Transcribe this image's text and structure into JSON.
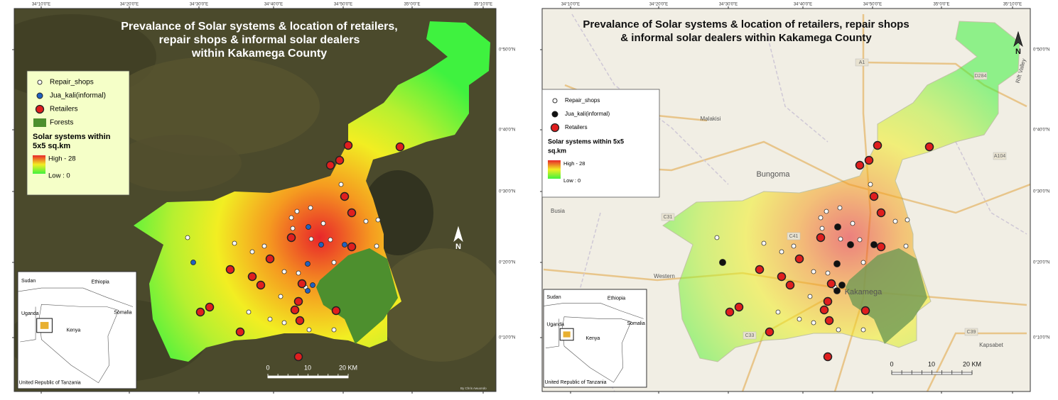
{
  "maps": [
    {
      "title_lines": [
        "Prevalance of Solar systems & location of retailers,",
        "repair shops & informal solar dealers",
        "within Kakamega County"
      ],
      "legend": {
        "items": [
          "Repair_shops",
          "Jua_kali(informal)",
          "Retailers",
          "Forests"
        ],
        "heat_title_lines": [
          "Solar systems within",
          "5x5 sq.km"
        ],
        "high": "High - 28",
        "low": "Low : 0"
      },
      "lon_labels": [
        "34°10'0\"E",
        "34°20'0\"E",
        "34°30'0\"E",
        "34°40'0\"E",
        "34°50'0\"E",
        "35°0'0\"E",
        "35°10'0\"E"
      ],
      "lat_labels": [
        "0°50'0\"N",
        "0°40'0\"N",
        "0°30'0\"N",
        "0°20'0\"N",
        "0°10'0\"N"
      ],
      "scale_labels": [
        "0",
        "10",
        "20 KM"
      ],
      "north": "N",
      "inset": [
        "Sudan",
        "Ethiopia",
        "Uganda",
        "Somalia",
        "Kenya",
        "United Republic of Tanzania"
      ],
      "credit": "By Chris Awuondo"
    },
    {
      "title_lines": [
        "Prevalance of Solar systems & location of retailers, repair shops",
        "& informal solar dealers  within Kakamega County"
      ],
      "legend": {
        "items": [
          "Repair_shops",
          "Jua_kali(informal)",
          "Retailers"
        ],
        "heat_title_lines": [
          "Solar systems within 5x5",
          "sq.km"
        ],
        "high": "High - 28",
        "low": "Low : 0"
      },
      "lon_labels": [
        "34°10'0\"E",
        "34°20'0\"E",
        "34°30'0\"E",
        "34°40'0\"E",
        "34°50'0\"E",
        "35°0'0\"E",
        "35°10'0\"E"
      ],
      "lat_labels": [
        "0°50'0\"N",
        "0°40'0\"N",
        "0°30'0\"N",
        "0°20'0\"N",
        "0°10'0\"N"
      ],
      "scale_labels": [
        "0",
        "10",
        "20 KM"
      ],
      "north": "N",
      "inset": [
        "Sudan",
        "Ethiopia",
        "Uganda",
        "Somalia",
        "Kenya",
        "United Republic of Tanzania"
      ],
      "places": [
        "Malakisi",
        "Bungoma",
        "Busia",
        "Kakamega",
        "Kapsabet",
        "Rift Valley",
        "Western"
      ],
      "roads": [
        "A1",
        "D284",
        "A104",
        "C31",
        "C41",
        "C33",
        "C39"
      ]
    }
  ]
}
